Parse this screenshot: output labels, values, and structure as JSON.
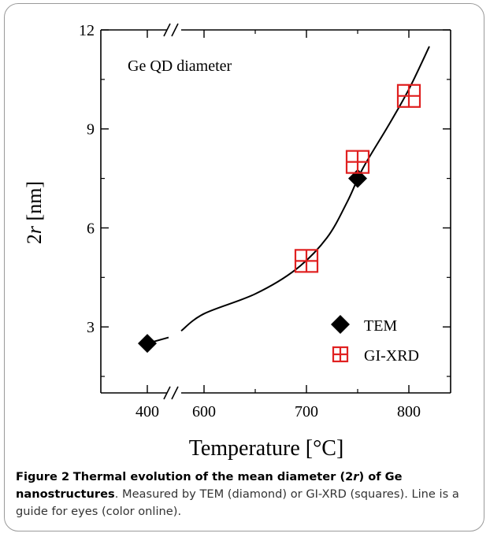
{
  "chart_data": {
    "type": "scatter",
    "title": "Ge QD diameter",
    "xlabel": "Temperature [°C]",
    "ylabel_italic_part": "r",
    "ylabel_prefix": "2",
    "ylabel_suffix": " [nm]",
    "x_axis_break": true,
    "x_ticks": [
      "400",
      "600",
      "700",
      "800"
    ],
    "y_ticks": [
      "3",
      "6",
      "9",
      "12"
    ],
    "ylim": [
      1,
      12
    ],
    "xlim_main": [
      550,
      825
    ],
    "x_break_segment": {
      "tick": 400
    },
    "legend_position": "bottom-right",
    "series": [
      {
        "name": "TEM",
        "marker": "diamond",
        "color": "#000000",
        "points": [
          {
            "x": 400,
            "y": 2.5
          },
          {
            "x": 750,
            "y": 7.5
          }
        ]
      },
      {
        "name": "GI-XRD",
        "marker": "crossed-square",
        "color": "#e02020",
        "points": [
          {
            "x": 700,
            "y": 5.0
          },
          {
            "x": 750,
            "y": 8.0
          },
          {
            "x": 800,
            "y": 10.0
          }
        ]
      }
    ],
    "guide_line": [
      {
        "x": 400,
        "y": 2.5
      },
      {
        "x": 600,
        "y": 3.4
      },
      {
        "x": 650,
        "y": 4.0
      },
      {
        "x": 690,
        "y": 4.75
      },
      {
        "x": 720,
        "y": 5.7
      },
      {
        "x": 740,
        "y": 6.8
      },
      {
        "x": 755,
        "y": 7.8
      },
      {
        "x": 780,
        "y": 9.1
      },
      {
        "x": 800,
        "y": 10.2
      },
      {
        "x": 820,
        "y": 11.5
      }
    ]
  },
  "caption": {
    "label": "Figure 2",
    "title_part1": "Thermal evolution of the mean diameter (2",
    "title_italic": "r",
    "title_part2": ") of Ge nanostructures",
    "text": ". Measured by TEM (diamond) or GI-XRD (squares). Line is a guide for eyes (color online)."
  }
}
